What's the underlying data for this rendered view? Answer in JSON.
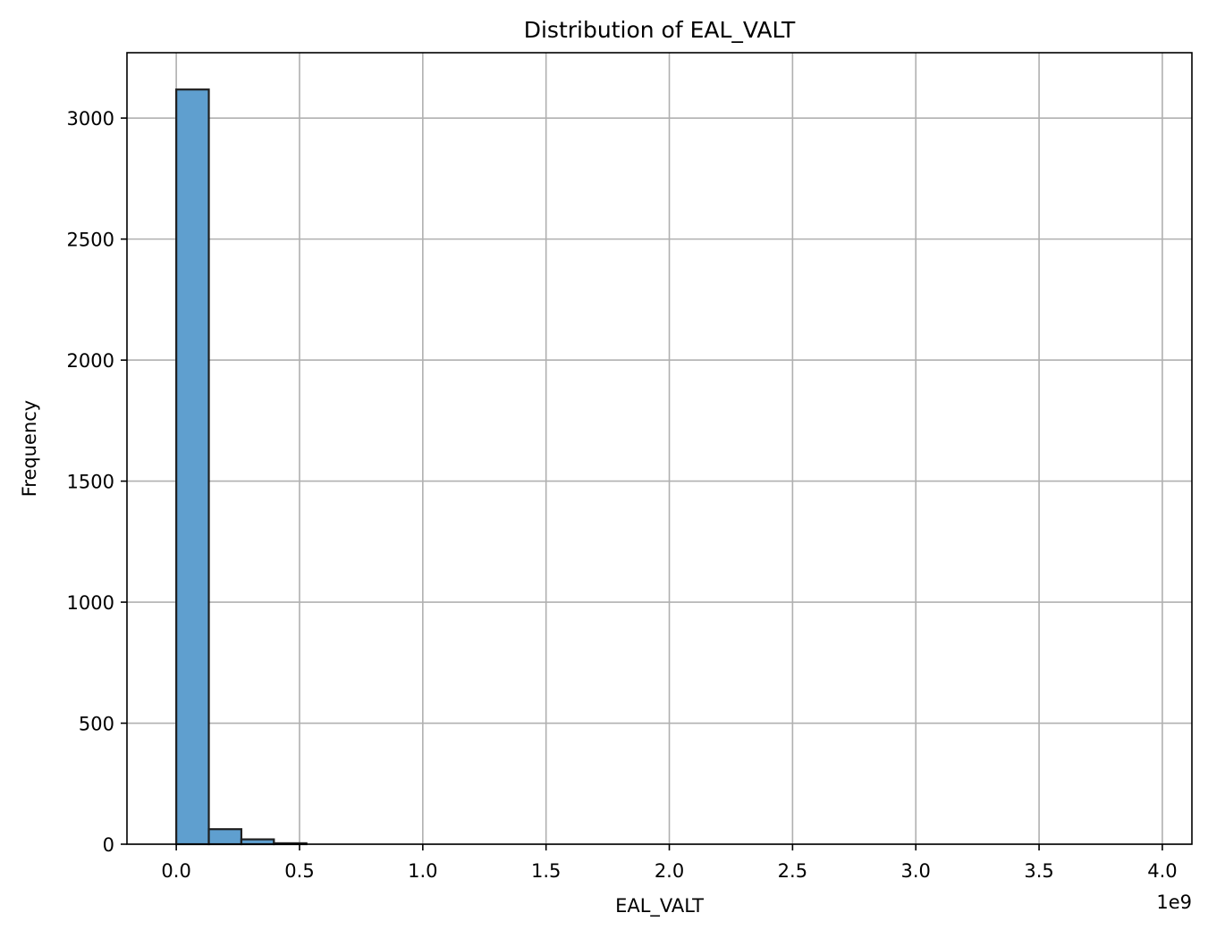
{
  "chart_data": {
    "type": "bar",
    "title": "Distribution of EAL_VALT",
    "xlabel": "EAL_VALT",
    "ylabel": "Frequency",
    "x_offset_label": "1e9",
    "xlim": [
      -0.2,
      4.12
    ],
    "ylim": [
      0,
      3270
    ],
    "x_ticks": [
      0.0,
      0.5,
      1.0,
      1.5,
      2.0,
      2.5,
      3.0,
      3.5,
      4.0
    ],
    "x_tick_labels": [
      "0.0",
      "0.5",
      "1.0",
      "1.5",
      "2.0",
      "2.5",
      "3.0",
      "3.5",
      "4.0"
    ],
    "y_ticks": [
      0,
      500,
      1000,
      1500,
      2000,
      2500,
      3000
    ],
    "y_tick_labels": [
      "0",
      "500",
      "1000",
      "1500",
      "2000",
      "2500",
      "3000"
    ],
    "grid": true,
    "bins": [
      {
        "start": 0.0,
        "end": 0.132,
        "value": 3118
      },
      {
        "start": 0.132,
        "end": 0.264,
        "value": 62
      },
      {
        "start": 0.264,
        "end": 0.396,
        "value": 20
      },
      {
        "start": 0.396,
        "end": 0.528,
        "value": 4
      }
    ],
    "bar_color": "#5f9fcf",
    "bar_edge_color": "#1f1f1f",
    "grid_color": "#b0b0b0"
  }
}
